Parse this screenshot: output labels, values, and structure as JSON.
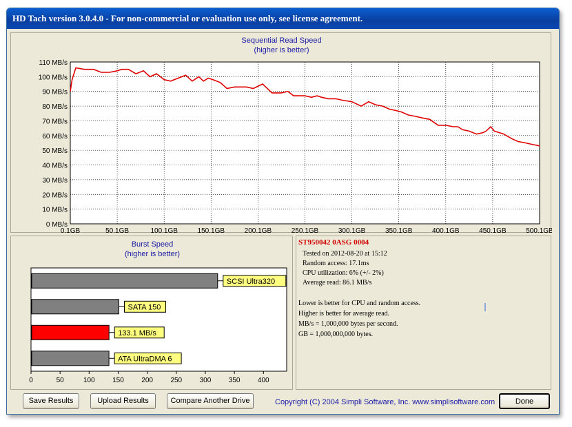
{
  "window": {
    "title": "HD Tach version 3.0.4.0  - For non-commercial or evaluation use only, see license agreement."
  },
  "colors": {
    "line": "#e00000",
    "bar_gray": "#808080",
    "bar_highlight": "#ff0000",
    "label_bg": "#ffff80",
    "title_text": "#1a1aa6"
  },
  "chart_data": [
    {
      "type": "line",
      "title": "Sequential Read Speed",
      "subtitle": "(higher is better)",
      "x_tick_labels": [
        "0.1GB",
        "50.1GB",
        "100.1GB",
        "150.1GB",
        "200.1GB",
        "250.1GB",
        "300.1GB",
        "350.1GB",
        "400.1GB",
        "450.1GB",
        "500.1GB"
      ],
      "y_tick_labels": [
        "0 MB/s",
        "10 MB/s",
        "20 MB/s",
        "30 MB/s",
        "40 MB/s",
        "50 MB/s",
        "60 MB/s",
        "70 MB/s",
        "80 MB/s",
        "90 MB/s",
        "100 MB/s",
        "110 MB/s"
      ],
      "xlim": [
        0.1,
        500.1
      ],
      "ylim": [
        0,
        110
      ],
      "grid": true,
      "series": [
        {
          "x": [
            0.1,
            2,
            6,
            15,
            25,
            33,
            42,
            50,
            55,
            62,
            70,
            78,
            85,
            92,
            100,
            107,
            115,
            123,
            130,
            137,
            142,
            147,
            152,
            160,
            167,
            175,
            183,
            188,
            195,
            205,
            215,
            225,
            232,
            238,
            243,
            250,
            257,
            263,
            268,
            275,
            283,
            290,
            300,
            310,
            318,
            325,
            333,
            340,
            347,
            353,
            360,
            368,
            375,
            383,
            392,
            400,
            408,
            413,
            418,
            425,
            433,
            440,
            443,
            448,
            452,
            457,
            462,
            470,
            477,
            485,
            492,
            500.1
          ],
          "y": [
            90,
            98,
            106,
            105,
            105,
            103,
            103,
            104,
            105,
            105,
            102,
            104,
            100,
            102,
            98,
            97,
            99,
            101,
            97,
            100,
            97,
            99,
            98,
            96,
            92,
            93,
            93,
            93,
            92,
            95,
            89,
            89,
            90,
            87,
            87,
            87,
            86,
            87,
            86,
            85,
            85,
            84,
            83,
            80,
            83,
            81,
            80,
            78,
            77,
            76,
            74,
            73,
            72,
            71,
            67,
            67,
            66,
            66,
            64,
            63,
            61,
            62,
            63,
            66,
            63,
            62,
            61,
            58,
            56,
            55,
            54,
            53
          ]
        }
      ]
    },
    {
      "type": "bar",
      "title": "Burst Speed",
      "subtitle": "(higher is better)",
      "orientation": "horizontal",
      "x_tick_labels": [
        "0",
        "50",
        "100",
        "150",
        "200",
        "250",
        "300",
        "350",
        "400"
      ],
      "xlim": [
        0,
        440
      ],
      "grid": false,
      "categories": [
        "SCSI Ultra320",
        "SATA 150",
        "133.1 MB/s",
        "ATA UltraDMA 6"
      ],
      "values": [
        320,
        150,
        133.1,
        133
      ],
      "highlight_index": 2
    }
  ],
  "info": {
    "drive": "ST950042 0ASG 0004",
    "tested": "Tested on 2012-08-20 at 15:12",
    "random_access": "Random access: 17.1ms",
    "cpu": "CPU utilization: 6% (+/- 2%)",
    "average_read": "Average read: 86.1 MB/s",
    "note1": "Lower is better for CPU and random access.",
    "note2": "Higher is better for average read.",
    "note3": "MB/s = 1,000,000 bytes per second.",
    "note4": "GB = 1,000,000,000 bytes."
  },
  "buttons": {
    "save": "Save Results",
    "upload": "Upload Results",
    "compare": "Compare Another Drive",
    "done": "Done"
  },
  "copyright": "Copyright (C) 2004 Simpli Software, Inc. www.simplisoftware.com"
}
